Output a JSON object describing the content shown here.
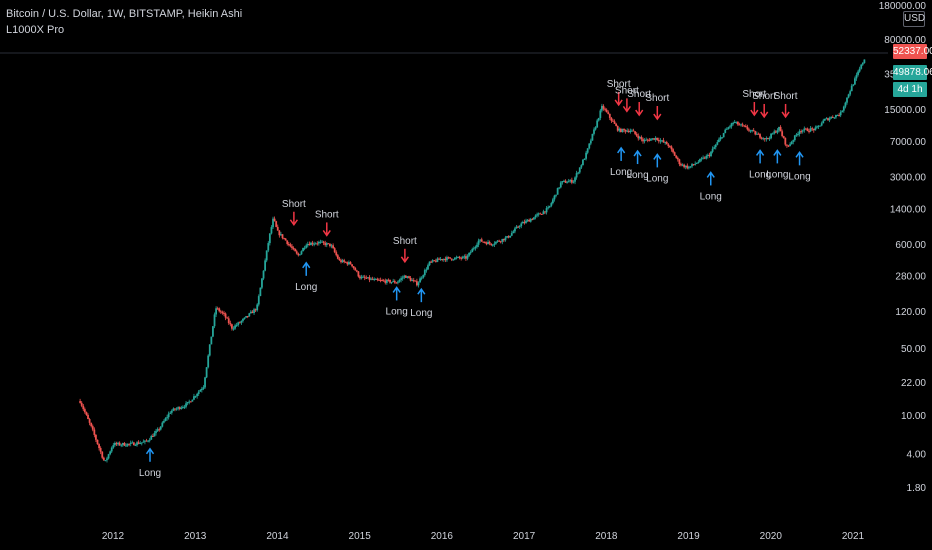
{
  "header": {
    "title": "Bitcoin / U.S. Dollar, 1W, BITSTAMP, Heikin Ashi",
    "indicator": "L1000X Pro"
  },
  "axis": {
    "currency": "USD",
    "last_price": "52337.00",
    "indicator_value": "49878.06",
    "countdown": "4d 1h"
  },
  "colors": {
    "up": "#26a69a",
    "down": "#ef5350",
    "long_arrow": "#2196f3",
    "short_arrow": "#f23645",
    "last_price_bg": "#ef5350",
    "indicator_bg": "#26a69a",
    "text": "#d1d4dc"
  },
  "chart_data": {
    "type": "candlestick",
    "scale": "log",
    "y_ticks": [
      "180000.00",
      "80000.00",
      "35000.00",
      "15000.00",
      "7000.00",
      "3000.00",
      "1400.00",
      "600.00",
      "280.00",
      "120.00",
      "50.00",
      "22.00",
      "10.00",
      "4.00",
      "1.80"
    ],
    "x_ticks": [
      "2012",
      "2013",
      "2014",
      "2015",
      "2016",
      "2017",
      "2018",
      "2019",
      "2020",
      "2021"
    ],
    "price_path": [
      [
        2011.6,
        14
      ],
      [
        2011.75,
        7
      ],
      [
        2011.9,
        3.2
      ],
      [
        2012.0,
        5
      ],
      [
        2012.2,
        5
      ],
      [
        2012.4,
        5.3
      ],
      [
        2012.55,
        7
      ],
      [
        2012.7,
        11
      ],
      [
        2012.9,
        13
      ],
      [
        2013.1,
        20
      ],
      [
        2013.25,
        130
      ],
      [
        2013.35,
        110
      ],
      [
        2013.45,
        80
      ],
      [
        2013.6,
        100
      ],
      [
        2013.75,
        130
      ],
      [
        2013.9,
        700
      ],
      [
        2013.95,
        1100
      ],
      [
        2014.0,
        800
      ],
      [
        2014.1,
        650
      ],
      [
        2014.25,
        450
      ],
      [
        2014.35,
        600
      ],
      [
        2014.5,
        620
      ],
      [
        2014.65,
        580
      ],
      [
        2014.75,
        400
      ],
      [
        2014.9,
        370
      ],
      [
        2015.0,
        270
      ],
      [
        2015.2,
        250
      ],
      [
        2015.45,
        240
      ],
      [
        2015.55,
        280
      ],
      [
        2015.7,
        230
      ],
      [
        2015.85,
        380
      ],
      [
        2016.0,
        420
      ],
      [
        2016.3,
        430
      ],
      [
        2016.45,
        650
      ],
      [
        2016.6,
        600
      ],
      [
        2016.8,
        700
      ],
      [
        2016.95,
        950
      ],
      [
        2017.1,
        1100
      ],
      [
        2017.3,
        1400
      ],
      [
        2017.45,
        2600
      ],
      [
        2017.6,
        2700
      ],
      [
        2017.75,
        5000
      ],
      [
        2017.95,
        16000
      ],
      [
        2018.05,
        12000
      ],
      [
        2018.15,
        9000
      ],
      [
        2018.3,
        9000
      ],
      [
        2018.45,
        7000
      ],
      [
        2018.6,
        7500
      ],
      [
        2018.75,
        6400
      ],
      [
        2018.9,
        4000
      ],
      [
        2019.0,
        3700
      ],
      [
        2019.25,
        5000
      ],
      [
        2019.45,
        9000
      ],
      [
        2019.55,
        11000
      ],
      [
        2019.7,
        9500
      ],
      [
        2019.85,
        8000
      ],
      [
        2019.95,
        7300
      ],
      [
        2020.1,
        9500
      ],
      [
        2020.2,
        6000
      ],
      [
        2020.35,
        9000
      ],
      [
        2020.55,
        9300
      ],
      [
        2020.65,
        11500
      ],
      [
        2020.85,
        13500
      ],
      [
        2020.95,
        22000
      ],
      [
        2021.05,
        34000
      ],
      [
        2021.15,
        52337
      ]
    ],
    "signals": [
      {
        "type": "Long",
        "x": 2012.45,
        "y": 5.3
      },
      {
        "type": "Short",
        "x": 2014.2,
        "y": 800
      },
      {
        "type": "Long",
        "x": 2014.35,
        "y": 450
      },
      {
        "type": "Short",
        "x": 2014.6,
        "y": 620
      },
      {
        "type": "Short",
        "x": 2015.55,
        "y": 330
      },
      {
        "type": "Long",
        "x": 2015.45,
        "y": 250
      },
      {
        "type": "Long",
        "x": 2015.75,
        "y": 240
      },
      {
        "type": "Short",
        "x": 2018.15,
        "y": 14000
      },
      {
        "type": "Short",
        "x": 2018.25,
        "y": 12000
      },
      {
        "type": "Short",
        "x": 2018.4,
        "y": 11000
      },
      {
        "type": "Short",
        "x": 2018.62,
        "y": 10000
      },
      {
        "type": "Long",
        "x": 2018.18,
        "y": 7000
      },
      {
        "type": "Long",
        "x": 2018.38,
        "y": 6500
      },
      {
        "type": "Long",
        "x": 2018.62,
        "y": 6000
      },
      {
        "type": "Long",
        "x": 2019.27,
        "y": 3900
      },
      {
        "type": "Short",
        "x": 2019.8,
        "y": 11000
      },
      {
        "type": "Short",
        "x": 2019.92,
        "y": 10500
      },
      {
        "type": "Short",
        "x": 2020.18,
        "y": 10500
      },
      {
        "type": "Long",
        "x": 2019.87,
        "y": 6600
      },
      {
        "type": "Long",
        "x": 2020.08,
        "y": 6600
      },
      {
        "type": "Long",
        "x": 2020.35,
        "y": 6300
      }
    ]
  }
}
